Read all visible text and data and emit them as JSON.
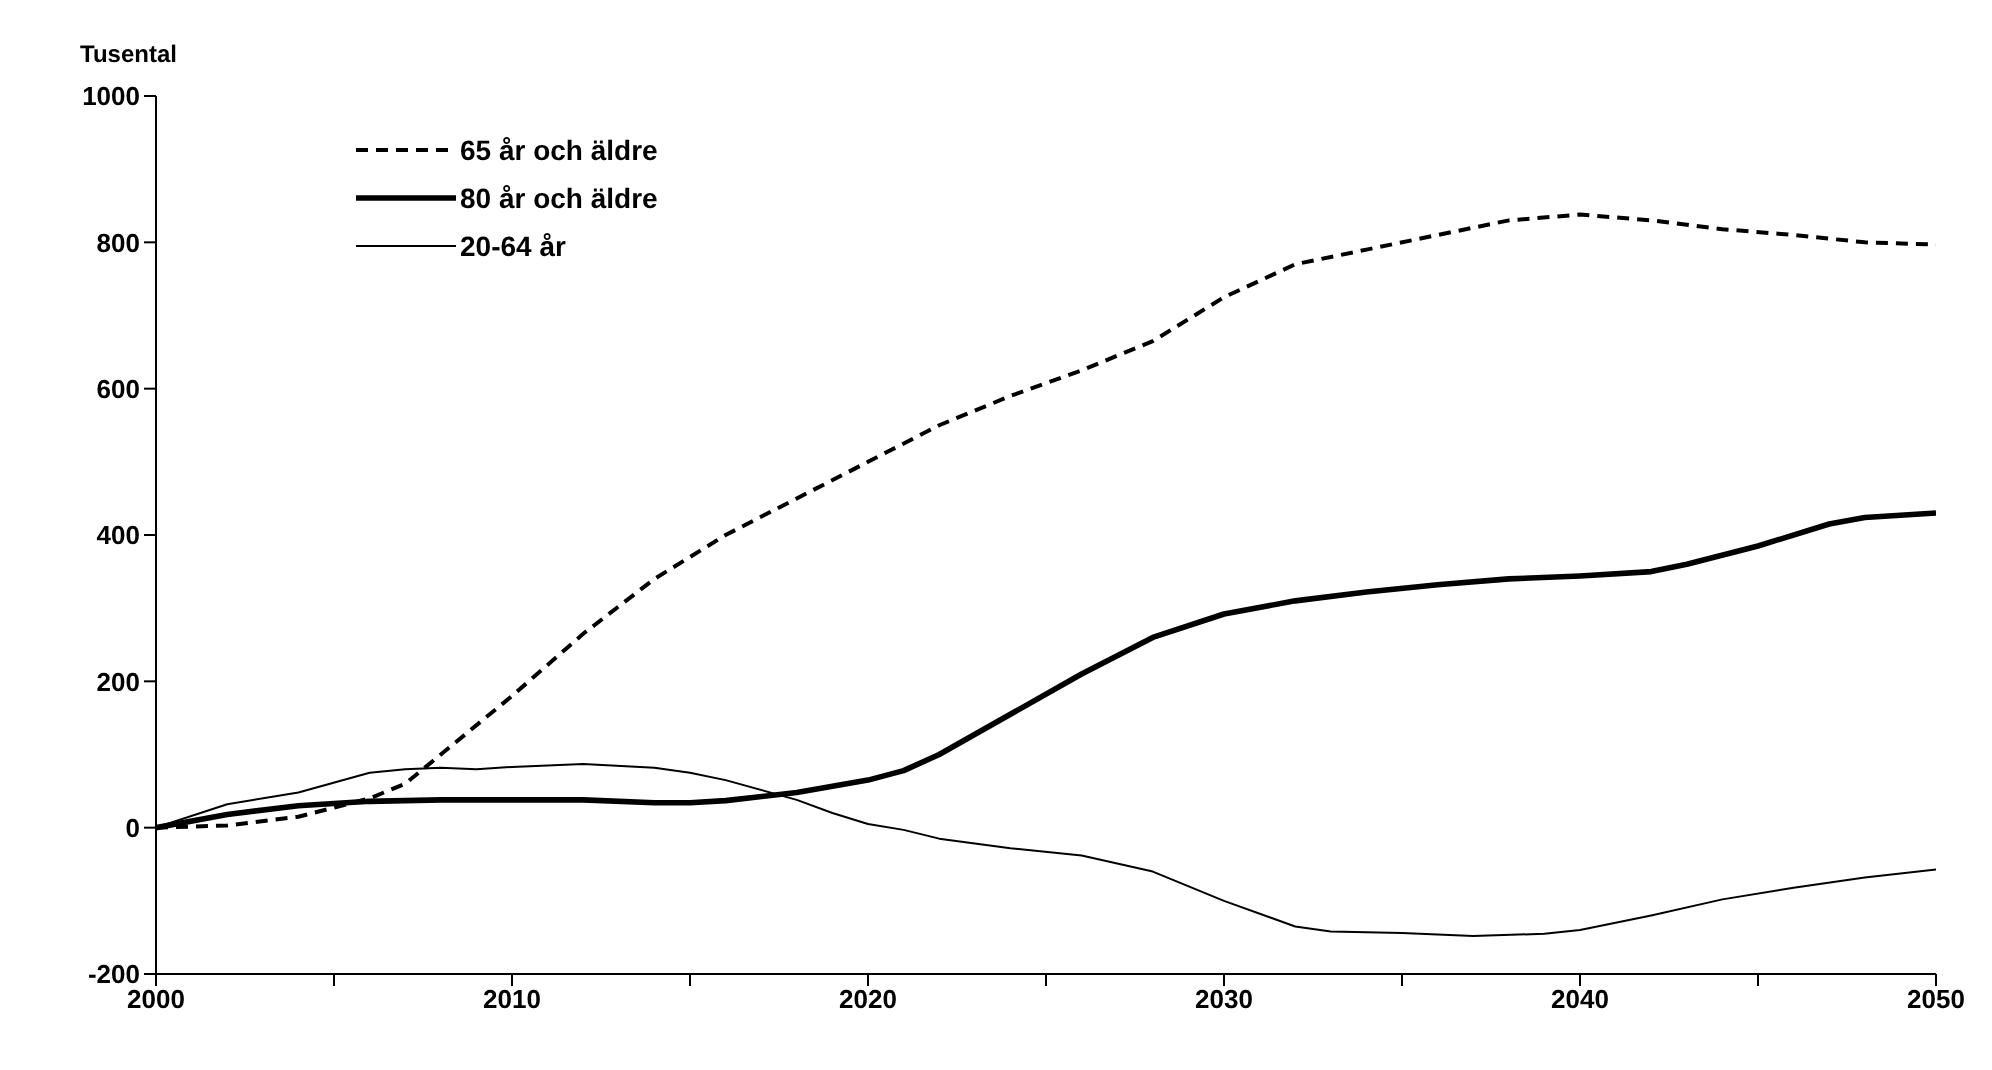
{
  "chart_data": {
    "type": "line",
    "ylabel": "Tusental",
    "xlim": [
      2000,
      2050
    ],
    "ylim": [
      -200,
      1000
    ],
    "xticks": [
      2000,
      {
        "value": 2005,
        "label": null
      },
      2010,
      {
        "value": 2015,
        "label": null
      },
      2020,
      {
        "value": 2025,
        "label": null
      },
      2030,
      {
        "value": 2035,
        "label": null
      },
      2040,
      {
        "value": 2045,
        "label": null
      },
      2050
    ],
    "yticks": [
      -200,
      0,
      200,
      400,
      600,
      800,
      1000
    ],
    "grid": false,
    "legend": "top left",
    "marker": "none",
    "series": [
      {
        "name": "65 år och äldre",
        "color": "#000000",
        "line_style": "dashed",
        "x": [
          2000,
          2002,
          2004,
          2006,
          2007,
          2008,
          2010,
          2012,
          2014,
          2016,
          2018,
          2020,
          2022,
          2024,
          2026,
          2028,
          2030,
          2032,
          2034,
          2036,
          2038,
          2040,
          2042,
          2044,
          2046,
          2048,
          2050
        ],
        "values": [
          0,
          3,
          15,
          40,
          60,
          100,
          180,
          265,
          340,
          400,
          450,
          500,
          550,
          590,
          625,
          665,
          725,
          770,
          790,
          810,
          830,
          838,
          830,
          818,
          810,
          800,
          797
        ]
      },
      {
        "name": "80 år och äldre",
        "color": "#000000",
        "line_style": "solid",
        "x": [
          2000,
          2002,
          2004,
          2006,
          2008,
          2010,
          2012,
          2014,
          2015,
          2016,
          2018,
          2020,
          2021,
          2022,
          2024,
          2026,
          2028,
          2030,
          2032,
          2034,
          2036,
          2038,
          2040,
          2042,
          2043,
          2045,
          2047,
          2048,
          2050
        ],
        "values": [
          0,
          18,
          30,
          36,
          38,
          38,
          38,
          34,
          34,
          37,
          48,
          65,
          78,
          100,
          155,
          210,
          260,
          292,
          310,
          322,
          332,
          340,
          344,
          350,
          360,
          385,
          415,
          424,
          430
        ]
      },
      {
        "name": "20-64 år",
        "color": "#000000",
        "line_style": "solid",
        "x": [
          2000,
          2002,
          2004,
          2006,
          2007,
          2008,
          2009,
          2010,
          2012,
          2014,
          2015,
          2016,
          2018,
          2019,
          2020,
          2021,
          2022,
          2024,
          2026,
          2028,
          2030,
          2032,
          2033,
          2035,
          2037,
          2039,
          2040,
          2042,
          2044,
          2046,
          2048,
          2050
        ],
        "values": [
          0,
          32,
          48,
          75,
          80,
          82,
          80,
          83,
          87,
          82,
          75,
          65,
          38,
          20,
          5,
          -3,
          -15,
          -28,
          -38,
          -60,
          -100,
          -135,
          -142,
          -144,
          -148,
          -145,
          -140,
          -120,
          -98,
          -82,
          -68,
          -57
        ]
      }
    ]
  }
}
